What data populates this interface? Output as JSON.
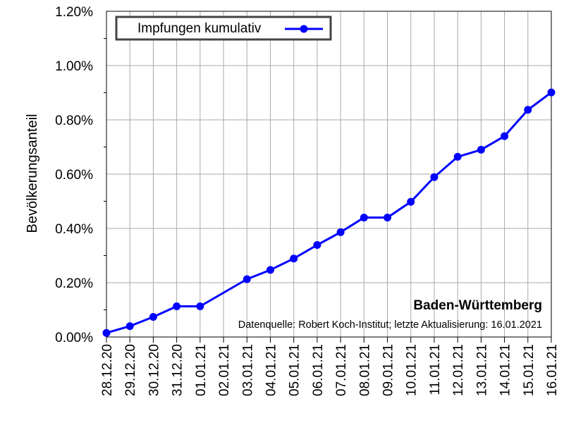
{
  "chart_data": {
    "type": "line",
    "title": "Baden-Württemberg",
    "subtitle": "Datenquelle: Robert Koch-Institut; letzte Aktualisierung: 16.01.2021",
    "xlabel": "",
    "ylabel": "Bevölkerungsanteil",
    "ylim": [
      0,
      1.2
    ],
    "y_ticks": [
      0,
      0.2,
      0.4,
      0.6,
      0.8,
      1.0,
      1.2
    ],
    "y_tick_labels": [
      "0.00%",
      "0.20%",
      "0.40%",
      "0.60%",
      "0.80%",
      "1.00%",
      "1.20%"
    ],
    "grid": true,
    "legend_position": "top-left",
    "categories": [
      "28.12.20",
      "29.12.20",
      "30.12.20",
      "31.12.20",
      "01.01.21",
      "02.01.21",
      "03.01.21",
      "04.01.21",
      "05.01.21",
      "06.01.21",
      "07.01.21",
      "08.01.21",
      "09.01.21",
      "10.01.21",
      "11.01.21",
      "12.01.21",
      "13.01.21",
      "14.01.21",
      "15.01.21",
      "16.01.21"
    ],
    "series": [
      {
        "name": "Impfungen kumulativ",
        "color": "#0000ff",
        "values": [
          0.015,
          0.04,
          0.074,
          0.113,
          0.113,
          null,
          0.213,
          0.247,
          0.289,
          0.339,
          0.386,
          0.44,
          0.44,
          0.498,
          0.589,
          0.664,
          0.69,
          0.74,
          0.837,
          0.901
        ]
      }
    ]
  }
}
